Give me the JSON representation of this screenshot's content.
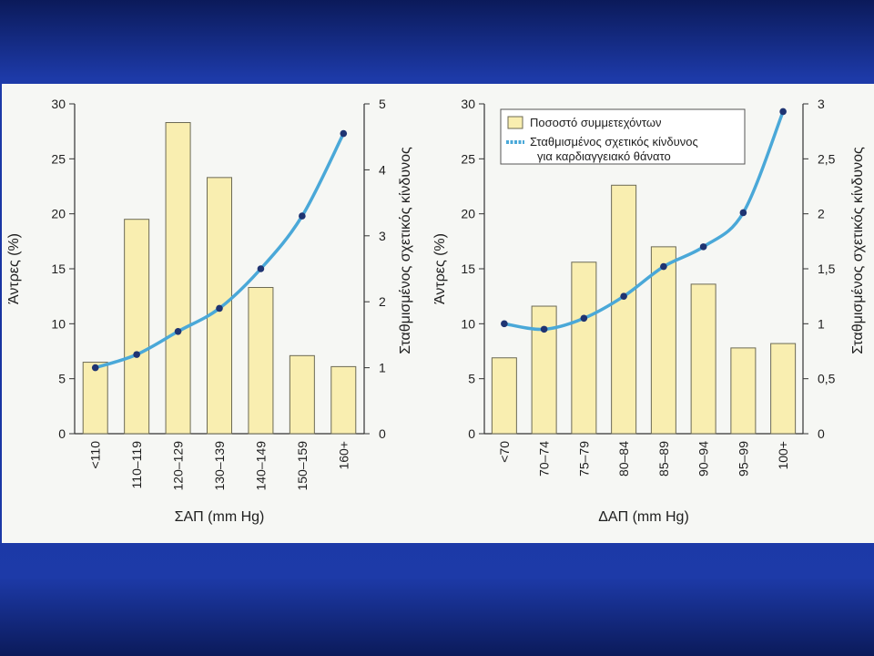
{
  "colors": {
    "bar_fill": "#f9eeb0",
    "bar_stroke": "#6c6a55",
    "line": "#4aa8d8",
    "marker": "#1f3472",
    "slide_background": "#1733a0",
    "panel_background": "#f6f7f4"
  },
  "chart_data": [
    {
      "type": "bar",
      "title": "",
      "xlabel": "ΣΑΠ (mm Hg)",
      "ylabel": "Άντρες (%)",
      "y2label": "Σταθμισμένος σχετικός κίνδυνος",
      "categories": [
        "<110",
        "110–119",
        "120–129",
        "130–139",
        "140–149",
        "150–159",
        "160+"
      ],
      "ylim": [
        0,
        30
      ],
      "yticks": [
        "0",
        "5",
        "10",
        "15",
        "20",
        "25",
        "30"
      ],
      "y2lim": [
        0,
        5
      ],
      "y2ticks": [
        "0",
        "1",
        "2",
        "3",
        "4",
        "5"
      ],
      "grid": false,
      "legend": "none",
      "series": [
        {
          "type": "bar",
          "axis": "left",
          "values": [
            6.5,
            19.5,
            28.3,
            23.3,
            13.3,
            7.1,
            6.1
          ]
        },
        {
          "type": "line",
          "axis": "right",
          "values": [
            1.0,
            1.2,
            1.55,
            1.9,
            2.5,
            3.3,
            4.55
          ]
        }
      ]
    },
    {
      "type": "bar",
      "title": "",
      "xlabel": "ΔΑΠ (mm Hg)",
      "ylabel": "Άντρες (%)",
      "y2label": "Σταθμισμένος σχετικός κίνδυνος",
      "categories": [
        "<70",
        "70–74",
        "75–79",
        "80–84",
        "85–89",
        "90–94",
        "95–99",
        "100+"
      ],
      "ylim": [
        0,
        30
      ],
      "yticks": [
        "0",
        "5",
        "10",
        "15",
        "20",
        "25",
        "30"
      ],
      "y2lim": [
        0,
        3
      ],
      "y2ticks": [
        "0",
        "0,5",
        "1",
        "1,5",
        "2",
        "2,5",
        "3"
      ],
      "grid": false,
      "legend": "top-left",
      "series": [
        {
          "type": "bar",
          "axis": "left",
          "name": "Ποσοστό συμμετεχόντων",
          "values": [
            6.9,
            11.6,
            15.6,
            22.6,
            17.0,
            13.6,
            7.8,
            8.2
          ]
        },
        {
          "type": "line",
          "axis": "right",
          "name": "Σταθμισμένος σχετικός κίνδυνος για καρδιαγγειακό θάνατο",
          "values": [
            1.0,
            0.95,
            1.05,
            1.25,
            1.52,
            1.7,
            2.01,
            2.93
          ]
        }
      ]
    }
  ]
}
